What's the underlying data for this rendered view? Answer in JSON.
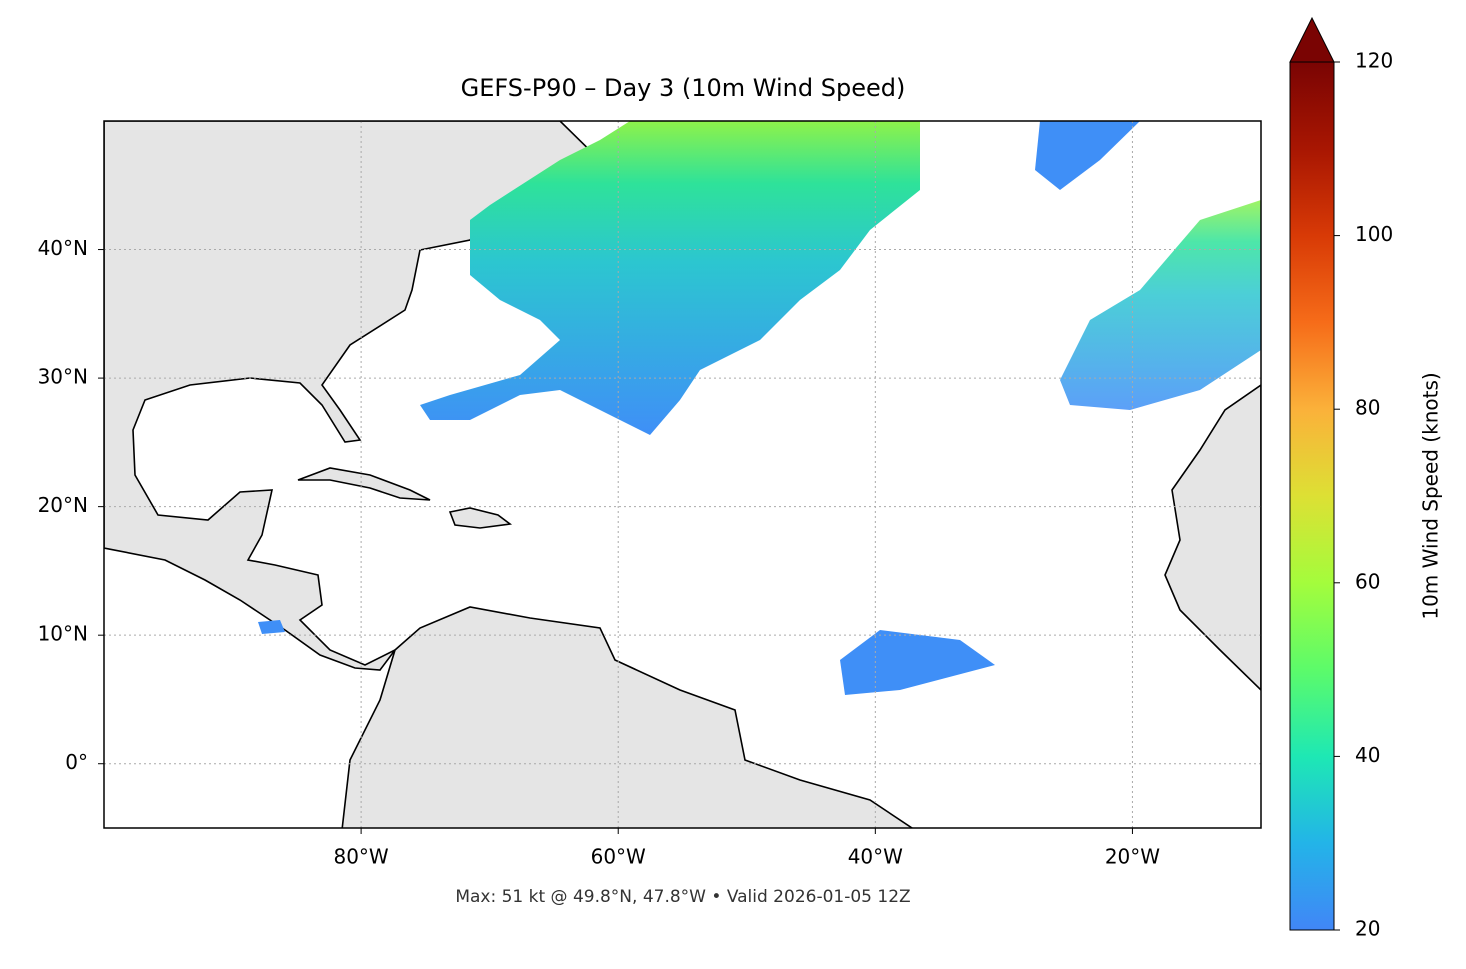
{
  "title": "GEFS-P90 – Day 3 (10m Wind Speed)",
  "footer": "Max: 51 kt @ 49.8°N, 47.8°W • Valid 2026-01-05 12Z",
  "map": {
    "type": "map",
    "xlim": [
      -100,
      -10
    ],
    "ylim": [
      -5,
      50
    ],
    "grid": true,
    "xticks": [
      {
        "value": -80,
        "label": "80°W"
      },
      {
        "value": -60,
        "label": "60°W"
      },
      {
        "value": -40,
        "label": "40°W"
      },
      {
        "value": -20,
        "label": "20°W"
      }
    ],
    "yticks": [
      {
        "value": 0,
        "label": "0°"
      },
      {
        "value": 10,
        "label": "10°N"
      },
      {
        "value": 20,
        "label": "20°N"
      },
      {
        "value": 30,
        "label": "30°N"
      },
      {
        "value": 40,
        "label": "40°N"
      }
    ]
  },
  "colorbar": {
    "label": "10m Wind Speed (knots)",
    "lim": [
      20,
      120
    ],
    "ticks": [
      20,
      40,
      60,
      80,
      100,
      120
    ]
  }
}
